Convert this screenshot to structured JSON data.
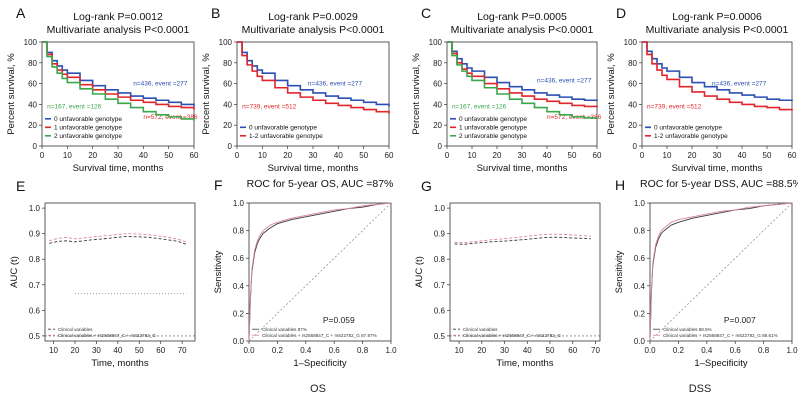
{
  "figure": {
    "group_labels": [
      "OS",
      "DSS"
    ],
    "colors": {
      "blue": "#2b4fb3",
      "red": "#e0262b",
      "green": "#3aa84a",
      "dark": "#3a3a3a",
      "pink": "#d8869a",
      "gray": "#909090"
    }
  },
  "chart_data": [
    {
      "type": "line",
      "panel": "A",
      "title_lines": [
        "Log-rank P=0.0012",
        "Multivariate analysis P<0.0001"
      ],
      "xlabel": "Survival time, months",
      "ylabel": "Percent survival, %",
      "xlim": [
        0,
        60
      ],
      "ylim": [
        0,
        100
      ],
      "xticks": [
        0,
        10,
        20,
        30,
        40,
        50,
        60
      ],
      "yticks": [
        0,
        20,
        40,
        60,
        80,
        100
      ],
      "legend_position": "bottom-left",
      "series": [
        {
          "name": "0 unfavorable genotype",
          "color": "blue",
          "x": [
            0,
            2,
            4,
            6,
            8,
            10,
            15,
            20,
            25,
            30,
            35,
            40,
            45,
            50,
            55,
            60
          ],
          "values": [
            100,
            90,
            82,
            77,
            73,
            70,
            63,
            58,
            54,
            51,
            48,
            46,
            44,
            42,
            40,
            38
          ],
          "annotation": "n=436, event =277",
          "annotation_at": [
            36,
            58
          ]
        },
        {
          "name": "1 unfavorable genotype",
          "color": "red",
          "x": [
            0,
            2,
            4,
            6,
            8,
            10,
            15,
            20,
            25,
            30,
            35,
            40,
            45,
            50,
            55,
            60
          ],
          "values": [
            100,
            88,
            79,
            73,
            69,
            66,
            59,
            54,
            50,
            47,
            44,
            42,
            40,
            38,
            37,
            35
          ],
          "annotation": "n=572, event =386",
          "annotation_at": [
            40,
            26
          ]
        },
        {
          "name": "2 unfavorable genotype",
          "color": "green",
          "x": [
            0,
            2,
            4,
            6,
            8,
            10,
            15,
            20,
            25,
            30,
            35,
            40,
            45,
            50,
            55,
            60
          ],
          "values": [
            100,
            86,
            76,
            70,
            65,
            61,
            55,
            50,
            45,
            41,
            37,
            33,
            30,
            28,
            26,
            24
          ],
          "annotation": "n=167, event =126",
          "annotation_at": [
            2,
            36
          ]
        }
      ]
    },
    {
      "type": "line",
      "panel": "B",
      "title_lines": [
        "Log-rank P=0.0029",
        "Multivariate analysis P<0.0001"
      ],
      "xlabel": "Survival time, months",
      "ylabel": "Percent survival, %",
      "xlim": [
        0,
        60
      ],
      "ylim": [
        0,
        100
      ],
      "xticks": [
        0,
        10,
        20,
        30,
        40,
        50,
        60
      ],
      "yticks": [
        0,
        20,
        40,
        60,
        80,
        100
      ],
      "legend_position": "bottom-left",
      "series": [
        {
          "name": "0 unfavorable genotype",
          "color": "blue",
          "x": [
            0,
            2,
            4,
            6,
            8,
            10,
            15,
            20,
            25,
            30,
            35,
            40,
            45,
            50,
            55,
            60
          ],
          "values": [
            100,
            90,
            82,
            77,
            73,
            70,
            63,
            58,
            54,
            51,
            48,
            46,
            44,
            42,
            40,
            38
          ],
          "annotation": "n=436, event =277",
          "annotation_at": [
            28,
            58
          ]
        },
        {
          "name": "1-2 unfavorable genotype",
          "color": "red",
          "x": [
            0,
            2,
            4,
            6,
            8,
            10,
            15,
            20,
            25,
            30,
            35,
            40,
            45,
            50,
            55,
            60
          ],
          "values": [
            100,
            87,
            78,
            72,
            67,
            63,
            56,
            51,
            47,
            44,
            41,
            39,
            37,
            35,
            33,
            31
          ],
          "annotation": "n=739, event =512",
          "annotation_at": [
            2,
            36
          ]
        }
      ]
    },
    {
      "type": "line",
      "panel": "C",
      "title_lines": [
        "Log-rank P=0.0005",
        "Multivariate analysis P<0.0001"
      ],
      "xlabel": "Survival time, months",
      "ylabel": "Percent survival, %",
      "xlim": [
        0,
        60
      ],
      "ylim": [
        0,
        100
      ],
      "xticks": [
        0,
        10,
        20,
        30,
        40,
        50,
        60
      ],
      "yticks": [
        0,
        20,
        40,
        60,
        80,
        100
      ],
      "legend_position": "bottom-left",
      "series": [
        {
          "name": "0 unfavorable genotype",
          "color": "blue",
          "x": [
            0,
            2,
            4,
            6,
            8,
            10,
            15,
            20,
            25,
            30,
            35,
            40,
            45,
            50,
            55,
            60
          ],
          "values": [
            100,
            91,
            84,
            79,
            75,
            72,
            66,
            61,
            57,
            54,
            51,
            49,
            47,
            45,
            44,
            43
          ],
          "annotation": "n=436, event =277",
          "annotation_at": [
            36,
            61
          ]
        },
        {
          "name": "1 unfavorable genotype",
          "color": "red",
          "x": [
            0,
            2,
            4,
            6,
            8,
            10,
            15,
            20,
            25,
            30,
            35,
            40,
            45,
            50,
            55,
            60
          ],
          "values": [
            100,
            89,
            80,
            74,
            70,
            67,
            60,
            55,
            51,
            48,
            45,
            43,
            41,
            39,
            38,
            37
          ],
          "annotation": "n=572, event =386",
          "annotation_at": [
            40,
            26
          ]
        },
        {
          "name": "2 unfavorable genotype",
          "color": "green",
          "x": [
            0,
            2,
            4,
            6,
            8,
            10,
            15,
            20,
            25,
            30,
            35,
            40,
            45,
            50,
            55,
            60
          ],
          "values": [
            100,
            87,
            78,
            72,
            67,
            63,
            56,
            50,
            45,
            41,
            37,
            33,
            30,
            28,
            27,
            26
          ],
          "annotation": "n=167, event =126",
          "annotation_at": [
            2,
            36
          ]
        }
      ]
    },
    {
      "type": "line",
      "panel": "D",
      "title_lines": [
        "Log-rank P=0.0006",
        "Multivariate analysis P<0.0001"
      ],
      "xlabel": "Survival time, months",
      "ylabel": "Percent survival, %",
      "xlim": [
        0,
        60
      ],
      "ylim": [
        0,
        100
      ],
      "xticks": [
        0,
        10,
        20,
        30,
        40,
        50,
        60
      ],
      "yticks": [
        0,
        20,
        40,
        60,
        80,
        100
      ],
      "legend_position": "bottom-left",
      "series": [
        {
          "name": "0 unfavorable genotype",
          "color": "blue",
          "x": [
            0,
            2,
            4,
            6,
            8,
            10,
            15,
            20,
            25,
            30,
            35,
            40,
            45,
            50,
            55,
            60
          ],
          "values": [
            100,
            91,
            84,
            79,
            75,
            72,
            66,
            61,
            57,
            54,
            51,
            49,
            47,
            45,
            44,
            43
          ],
          "annotation": "n=436, event =277",
          "annotation_at": [
            28,
            58
          ]
        },
        {
          "name": "1-2 unfavorable genotype",
          "color": "red",
          "x": [
            0,
            2,
            4,
            6,
            8,
            10,
            15,
            20,
            25,
            30,
            35,
            40,
            45,
            50,
            55,
            60
          ],
          "values": [
            100,
            88,
            79,
            73,
            68,
            64,
            57,
            52,
            48,
            45,
            42,
            40,
            38,
            37,
            35,
            34
          ],
          "annotation": "n=739, event =512",
          "annotation_at": [
            2,
            36
          ]
        }
      ]
    },
    {
      "type": "line",
      "panel": "E",
      "title_lines": [],
      "xlabel": "Time, months",
      "ylabel": "AUC (t)",
      "xlim": [
        6,
        76
      ],
      "ylim": [
        0.48,
        1.02
      ],
      "xticks": [
        10,
        20,
        30,
        40,
        50,
        60,
        70
      ],
      "yticks": [
        0.5,
        0.6,
        0.7,
        0.8,
        0.9,
        1.0
      ],
      "reference_line": 0.5,
      "legend_position": "bottom-left",
      "series": [
        {
          "name": "Clinical variables",
          "color": "dark",
          "dash": "3,2",
          "x": [
            8,
            12,
            16,
            20,
            24,
            28,
            32,
            36,
            40,
            44,
            48,
            52,
            56,
            60,
            64,
            68,
            72
          ],
          "values": [
            0.862,
            0.87,
            0.872,
            0.868,
            0.872,
            0.876,
            0.879,
            0.882,
            0.886,
            0.889,
            0.888,
            0.887,
            0.884,
            0.88,
            0.875,
            0.87,
            0.858
          ]
        },
        {
          "name": "Clinical variables + rs2568847_C + rs622782_G",
          "color": "pink",
          "dash": "3,2",
          "x": [
            8,
            12,
            16,
            20,
            24,
            28,
            32,
            36,
            40,
            44,
            48,
            52,
            56,
            60,
            64,
            68,
            72
          ],
          "values": [
            0.872,
            0.882,
            0.885,
            0.88,
            0.883,
            0.887,
            0.89,
            0.893,
            0.897,
            0.9,
            0.899,
            0.897,
            0.894,
            0.89,
            0.885,
            0.878,
            0.868
          ]
        },
        {
          "name": "",
          "color": "gray",
          "dash": "1,2",
          "x": [
            20,
            72
          ],
          "values": [
            0.665,
            0.665
          ]
        }
      ]
    },
    {
      "type": "line",
      "panel": "F",
      "title_lines": [
        "ROC for 5-year OS, AUC =87%"
      ],
      "xlabel": "1–Specificity",
      "ylabel": "Sensitivity",
      "xlim": [
        0,
        1
      ],
      "ylim": [
        0,
        1
      ],
      "xticks": [
        0.0,
        0.2,
        0.4,
        0.6,
        0.8,
        1.0
      ],
      "yticks": [
        0.0,
        0.2,
        0.4,
        0.6,
        0.8,
        1.0
      ],
      "annotation": "P=0.059",
      "legend_position": "bottom-left",
      "series": [
        {
          "name": "Clinical variables 87%",
          "color": "dark",
          "x": [
            0,
            0.01,
            0.02,
            0.04,
            0.06,
            0.08,
            0.1,
            0.15,
            0.2,
            0.3,
            0.4,
            0.5,
            0.6,
            0.7,
            0.8,
            0.9,
            1.0
          ],
          "values": [
            0,
            0.3,
            0.5,
            0.64,
            0.71,
            0.75,
            0.78,
            0.82,
            0.85,
            0.88,
            0.9,
            0.92,
            0.94,
            0.96,
            0.97,
            0.99,
            1.0
          ]
        },
        {
          "name": "Clinical variables + rs2568847_C + rs622782_G 87.97%",
          "color": "pink",
          "x": [
            0,
            0.01,
            0.02,
            0.04,
            0.06,
            0.08,
            0.1,
            0.15,
            0.2,
            0.3,
            0.4,
            0.5,
            0.6,
            0.7,
            0.8,
            0.9,
            1.0
          ],
          "values": [
            0,
            0.32,
            0.52,
            0.66,
            0.73,
            0.77,
            0.8,
            0.84,
            0.86,
            0.89,
            0.91,
            0.93,
            0.95,
            0.96,
            0.98,
            0.99,
            1.0
          ]
        }
      ]
    },
    {
      "type": "line",
      "panel": "G",
      "title_lines": [],
      "xlabel": "Time, months",
      "ylabel": "AUC (t)",
      "xlim": [
        6,
        72
      ],
      "ylim": [
        0.48,
        1.02
      ],
      "xticks": [
        10,
        20,
        30,
        40,
        50,
        60,
        70
      ],
      "yticks": [
        0.5,
        0.6,
        0.7,
        0.8,
        0.9,
        1.0
      ],
      "reference_line": 0.5,
      "legend_position": "bottom-left",
      "series": [
        {
          "name": "Clinical variables",
          "color": "dark",
          "dash": "3,2",
          "x": [
            8,
            12,
            16,
            20,
            24,
            28,
            32,
            36,
            40,
            44,
            48,
            52,
            56,
            60,
            64,
            68
          ],
          "values": [
            0.86,
            0.858,
            0.862,
            0.865,
            0.868,
            0.87,
            0.872,
            0.875,
            0.878,
            0.882,
            0.885,
            0.886,
            0.885,
            0.883,
            0.882,
            0.88
          ]
        },
        {
          "name": "Clinical variables + rs2568847_C + rs622782_G",
          "color": "pink",
          "dash": "3,2",
          "x": [
            8,
            12,
            16,
            20,
            24,
            28,
            32,
            36,
            40,
            44,
            48,
            52,
            56,
            60,
            64,
            68
          ],
          "values": [
            0.866,
            0.864,
            0.868,
            0.872,
            0.876,
            0.879,
            0.882,
            0.886,
            0.89,
            0.894,
            0.897,
            0.898,
            0.897,
            0.895,
            0.893,
            0.89
          ]
        }
      ]
    },
    {
      "type": "line",
      "panel": "H",
      "title_lines": [
        "ROC for 5-year DSS, AUC =88.5%"
      ],
      "xlabel": "1–Specificity",
      "ylabel": "Sensitivity",
      "xlim": [
        0,
        1
      ],
      "ylim": [
        0,
        1
      ],
      "xticks": [
        0.0,
        0.2,
        0.4,
        0.6,
        0.8,
        1.0
      ],
      "yticks": [
        0.0,
        0.2,
        0.4,
        0.6,
        0.8,
        1.0
      ],
      "annotation": "P=0.007",
      "legend_position": "bottom-left",
      "series": [
        {
          "name": "Clinical variables 88.5%",
          "color": "dark",
          "x": [
            0,
            0.01,
            0.02,
            0.04,
            0.06,
            0.08,
            0.1,
            0.15,
            0.2,
            0.3,
            0.4,
            0.5,
            0.6,
            0.7,
            0.8,
            0.9,
            1.0
          ],
          "values": [
            0,
            0.35,
            0.55,
            0.68,
            0.74,
            0.78,
            0.8,
            0.84,
            0.86,
            0.89,
            0.91,
            0.93,
            0.95,
            0.96,
            0.98,
            0.99,
            1.0
          ]
        },
        {
          "name": "Clinical variables + rs2568847_C + rs622782_G 89.61%",
          "color": "pink",
          "x": [
            0,
            0.01,
            0.02,
            0.04,
            0.06,
            0.08,
            0.1,
            0.15,
            0.2,
            0.3,
            0.4,
            0.5,
            0.6,
            0.7,
            0.8,
            0.9,
            1.0
          ],
          "values": [
            0,
            0.37,
            0.57,
            0.7,
            0.76,
            0.8,
            0.82,
            0.86,
            0.88,
            0.9,
            0.92,
            0.94,
            0.95,
            0.97,
            0.98,
            0.99,
            1.0
          ]
        }
      ]
    }
  ]
}
